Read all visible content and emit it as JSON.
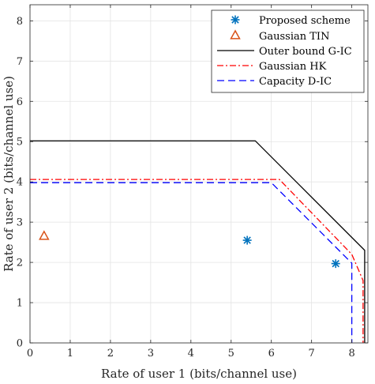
{
  "chart_data": {
    "type": "line",
    "xlabel": "Rate of user 1 (bits/channel use)",
    "ylabel": "Rate of user 2 (bits/channel use)",
    "xlim": [
      0,
      8.4
    ],
    "ylim": [
      0,
      8.4
    ],
    "xticks": [
      "0",
      "1",
      "2",
      "3",
      "4",
      "5",
      "6",
      "7",
      "8"
    ],
    "yticks": [
      "0",
      "1",
      "2",
      "3",
      "4",
      "5",
      "6",
      "7",
      "8"
    ],
    "grid": true,
    "legend_position": "top-right",
    "series": [
      {
        "name": "Proposed scheme",
        "kind": "scatter",
        "marker": "asterisk",
        "color": "#0072BD",
        "x": [
          5.4,
          7.6
        ],
        "y": [
          2.55,
          1.97
        ]
      },
      {
        "name": "Gaussian TIN",
        "kind": "scatter",
        "marker": "triangle",
        "color": "#D95319",
        "x": [
          0.35
        ],
        "y": [
          2.65
        ]
      },
      {
        "name": "Outer bound G-IC",
        "kind": "line",
        "dash": "solid",
        "color": "#000000",
        "x": [
          0,
          5.6,
          8.32,
          8.32
        ],
        "y": [
          5.02,
          5.02,
          2.3,
          0
        ]
      },
      {
        "name": "Gaussian HK",
        "kind": "line",
        "dash": "dashdot",
        "color": "#FF0000",
        "x": [
          0,
          6.2,
          8.0,
          8.28,
          8.28
        ],
        "y": [
          4.06,
          4.06,
          2.2,
          1.55,
          0
        ]
      },
      {
        "name": "Capacity D-IC",
        "kind": "line",
        "dash": "dashed",
        "color": "#0000FF",
        "x": [
          0,
          6.0,
          8.0,
          8.0
        ],
        "y": [
          3.98,
          3.98,
          1.98,
          0
        ]
      }
    ]
  }
}
